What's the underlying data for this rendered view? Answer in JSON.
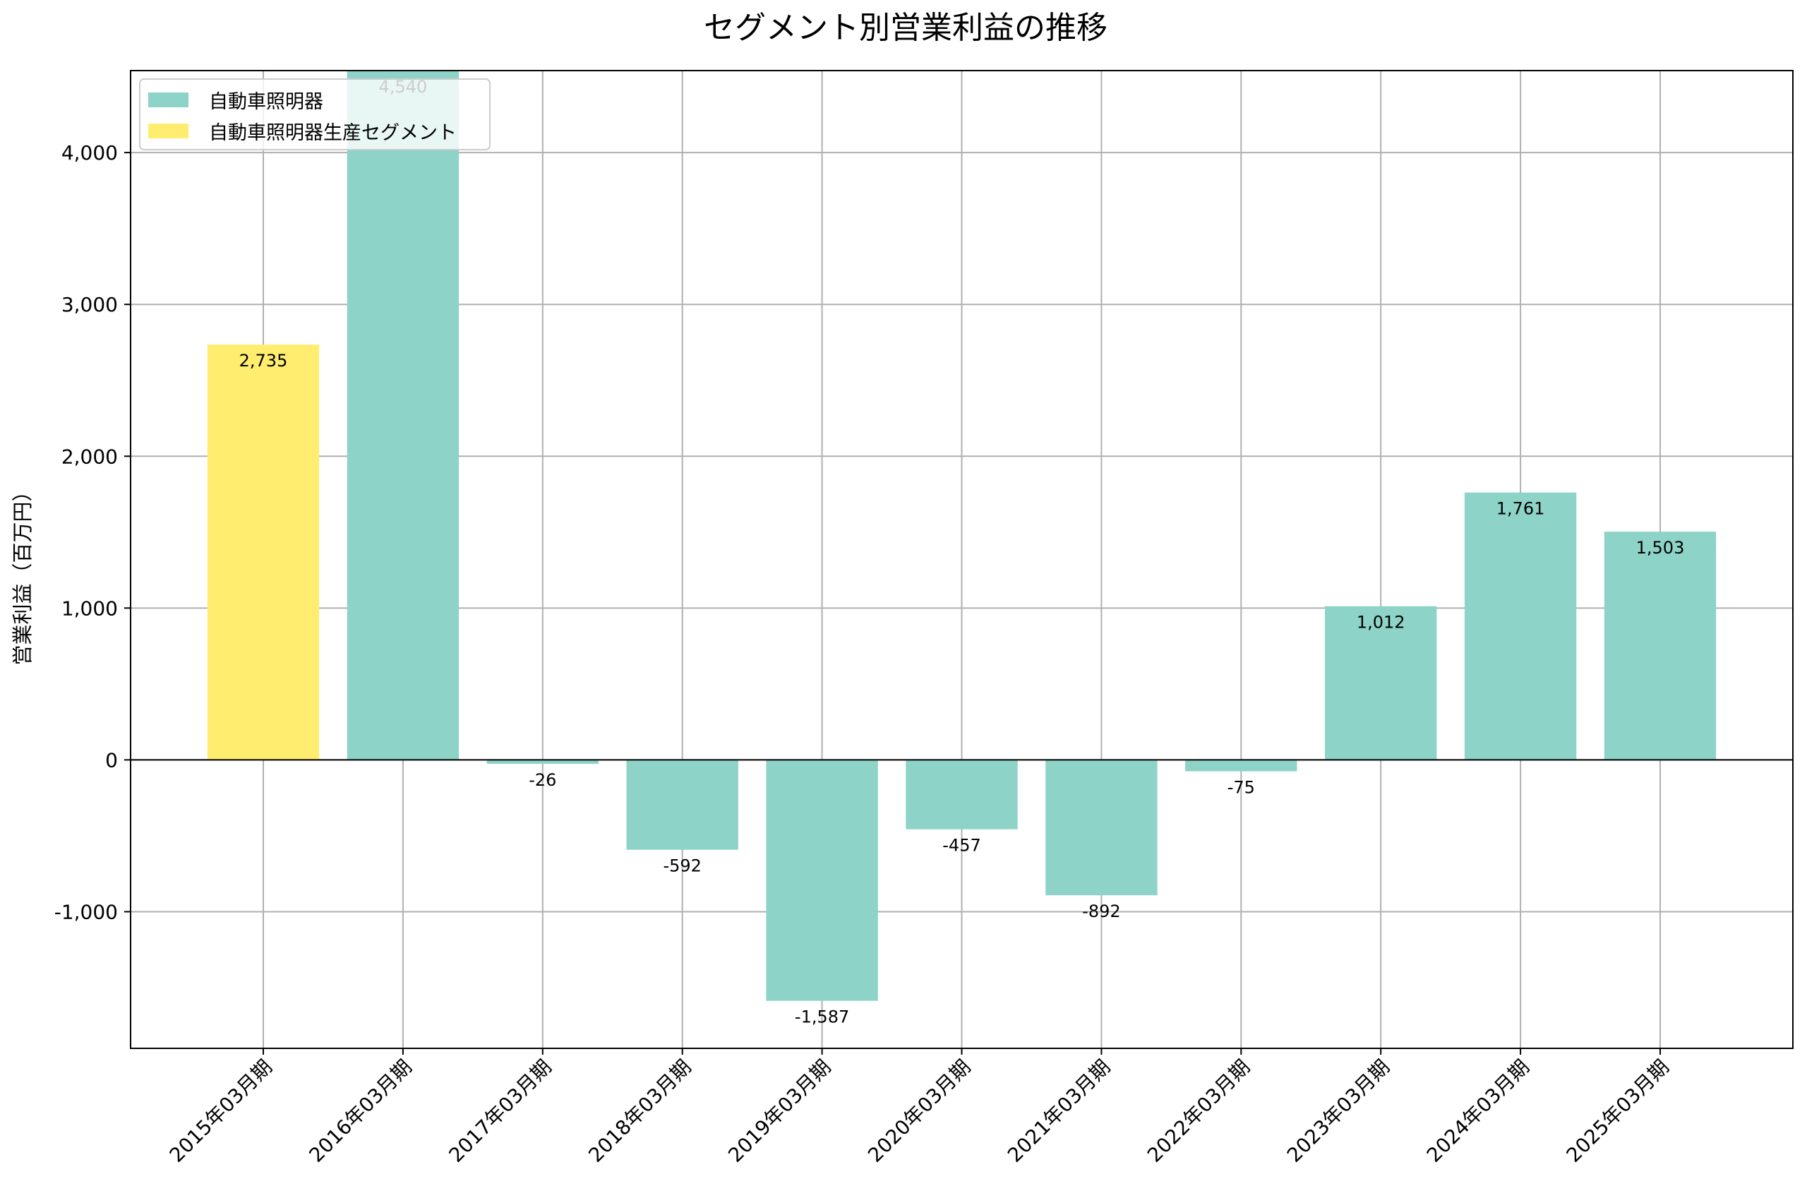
{
  "chart_data": {
    "type": "bar",
    "title": "セグメント別営業利益の推移",
    "xlabel": "",
    "ylabel": "営業利益（百万円）",
    "ylim": [
      -1900,
      4540
    ],
    "yticks": [
      -1000,
      0,
      1000,
      2000,
      3000,
      4000
    ],
    "ytick_labels": [
      "-1,000",
      "0",
      "1,000",
      "2,000",
      "3,000",
      "4,000"
    ],
    "grid": true,
    "legend_position": "top-left",
    "categories": [
      "2015年03月期",
      "2016年03月期",
      "2017年03月期",
      "2018年03月期",
      "2019年03月期",
      "2020年03月期",
      "2021年03月期",
      "2022年03月期",
      "2023年03月期",
      "2024年03月期",
      "2025年03月期"
    ],
    "series": [
      {
        "name": "自動車照明器",
        "color": "#8dd3c7",
        "values": [
          null,
          4540,
          -26,
          -592,
          -1587,
          -457,
          -892,
          -75,
          1012,
          1761,
          1503
        ],
        "labels": [
          null,
          "4,540",
          "-26",
          "-592",
          "-1,587",
          "-457",
          "-892",
          "-75",
          "1,012",
          "1,761",
          "1,503"
        ]
      },
      {
        "name": "自動車照明器生産セグメント",
        "color": "#ffed6f",
        "values": [
          2735,
          null,
          null,
          null,
          null,
          null,
          null,
          null,
          null,
          null,
          null
        ],
        "labels": [
          "2,735",
          null,
          null,
          null,
          null,
          null,
          null,
          null,
          null,
          null,
          null
        ]
      }
    ]
  }
}
